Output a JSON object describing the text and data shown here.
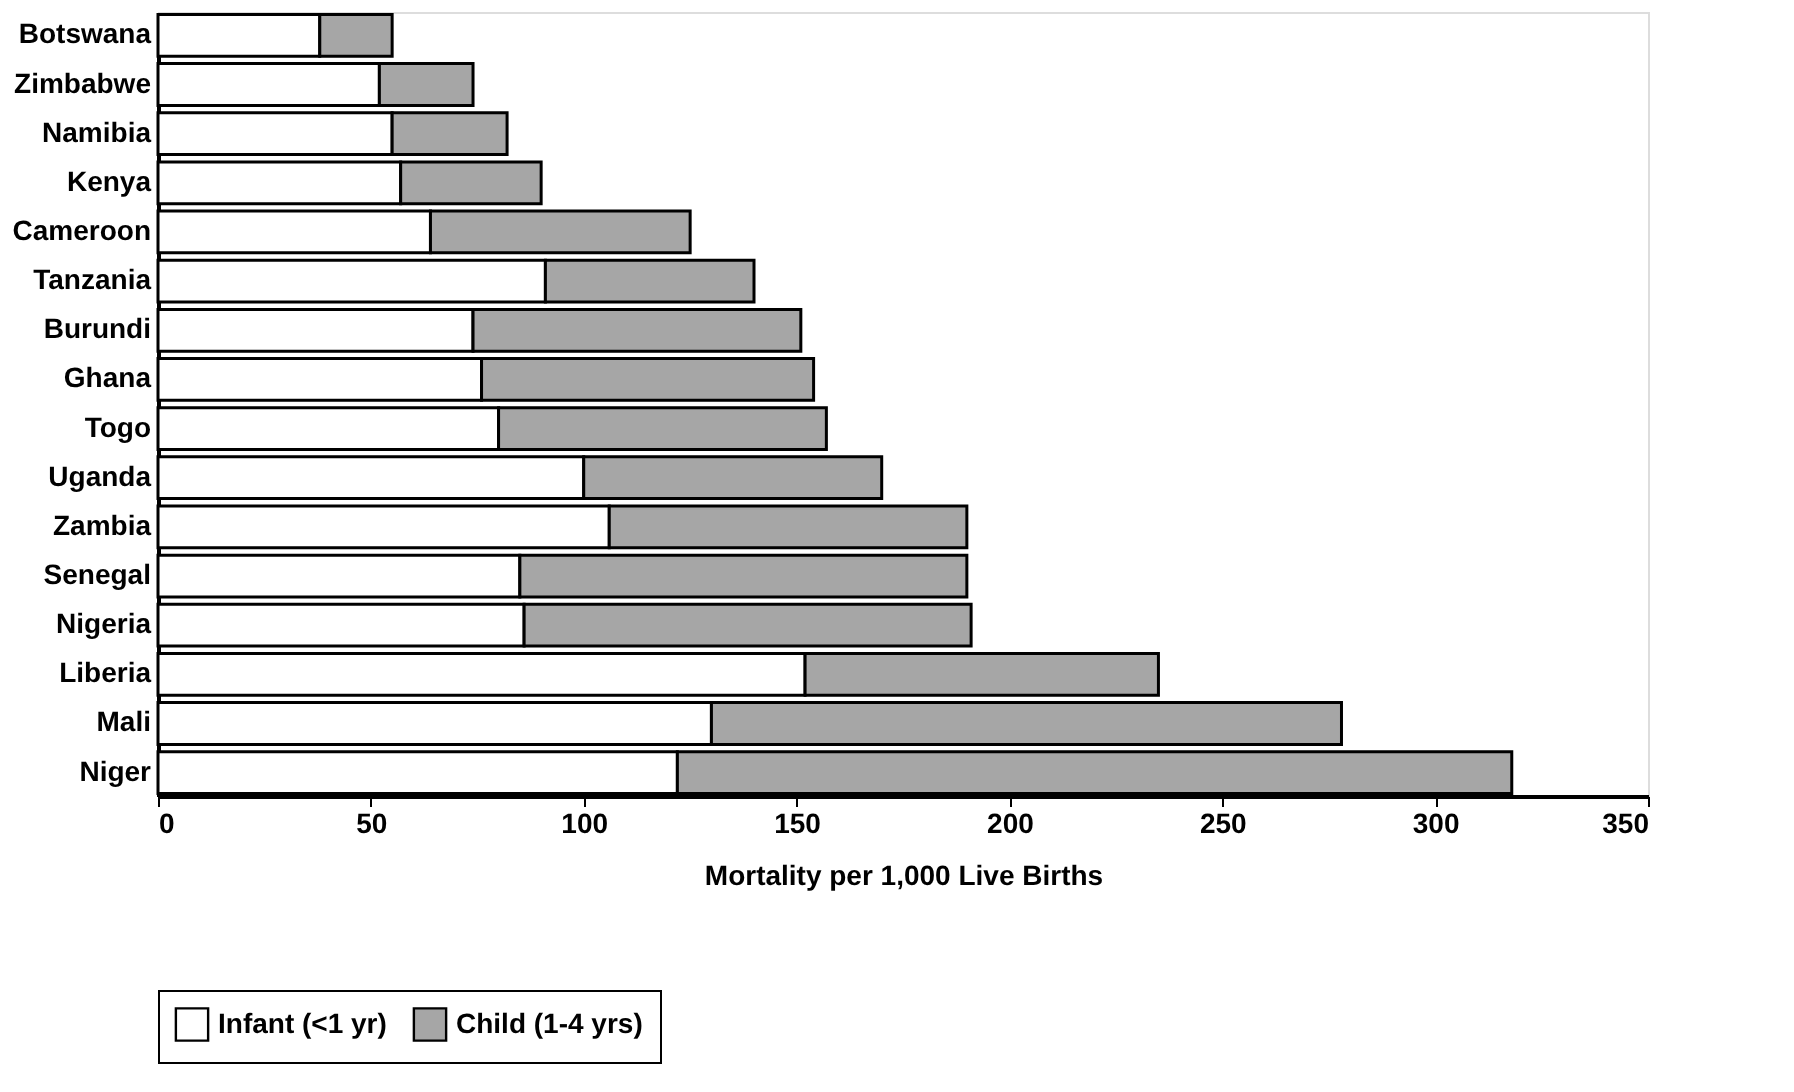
{
  "chart_data": {
    "type": "bar",
    "orientation": "horizontal",
    "stacked": true,
    "categories": [
      "Botswana",
      "Zimbabwe",
      "Namibia",
      "Kenya",
      "Cameroon",
      "Tanzania",
      "Burundi",
      "Ghana",
      "Togo",
      "Uganda",
      "Zambia",
      "Senegal",
      "Nigeria",
      "Liberia",
      "Mali",
      "Niger"
    ],
    "series": [
      {
        "name": "Infant (<1 yr)",
        "color": "#ffffff",
        "values": [
          38,
          52,
          55,
          57,
          64,
          91,
          74,
          76,
          80,
          100,
          106,
          85,
          86,
          152,
          130,
          122
        ]
      },
      {
        "name": "Child (1-4 yrs)",
        "color": "#a6a6a6",
        "values": [
          17,
          22,
          27,
          33,
          61,
          49,
          77,
          78,
          77,
          70,
          84,
          105,
          105,
          83,
          148,
          196
        ]
      }
    ],
    "xlabel": "Mortality per 1,000 Live Births",
    "xlim": [
      0,
      350
    ],
    "xticks": [
      0,
      50,
      100,
      150,
      200,
      250,
      300,
      350
    ],
    "grid": false,
    "legend": "bottom"
  }
}
